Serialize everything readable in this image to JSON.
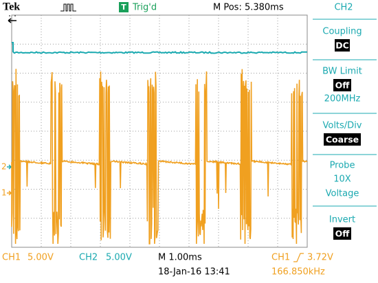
{
  "header": {
    "brand": "Tek",
    "trigger_icon": "T",
    "trigger_status": "Trig'd",
    "position": "M Pos: 5.380ms",
    "channel": "CH2"
  },
  "menu": [
    {
      "label": "Coupling",
      "value": "DC"
    },
    {
      "label": "BW Limit",
      "value": "Off",
      "detail": "200MHz"
    },
    {
      "label": "Volts/Div",
      "value": "Coarse"
    },
    {
      "label": "Probe",
      "lines": [
        "10X",
        "Voltage"
      ]
    },
    {
      "label": "Invert",
      "value": "Off"
    }
  ],
  "markers": [
    "2",
    "1"
  ],
  "footer": {
    "ch1": "CH1",
    "ch1_scale": "5.00V",
    "ch2": "CH2",
    "ch2_scale": "5.00V",
    "timebase": "M 1.00ms",
    "date": "18-Jan-16 13:41",
    "trigger_channel": "CH1",
    "trigger_level": "3.72V",
    "frequency": "166.850kHz"
  }
}
